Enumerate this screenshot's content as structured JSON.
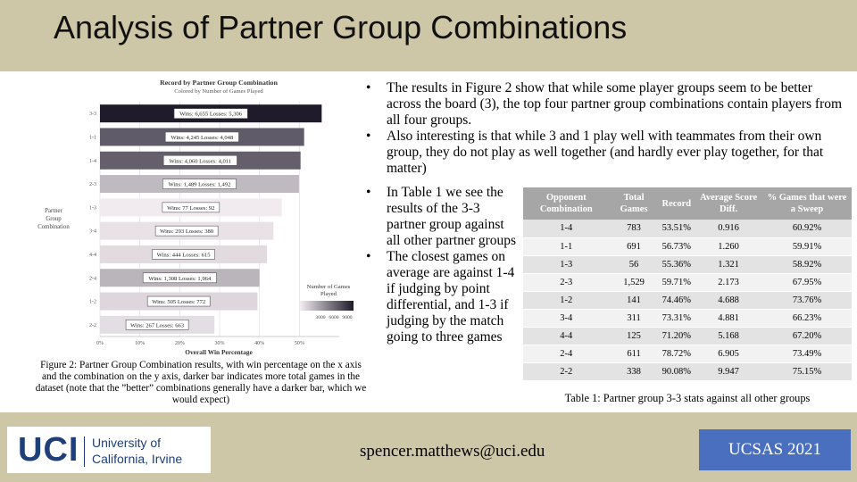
{
  "slide": {
    "title": "Analysis of Partner Group Combinations"
  },
  "chart_data": {
    "type": "bar",
    "orientation": "horizontal",
    "title": "Record by Partner Group Combination",
    "subtitle": "Colored by Number of Games Played",
    "xlabel": "Overall Win Percentage",
    "ylabel": "Partner Group Combination",
    "xlim": [
      0,
      0.6
    ],
    "x_ticks": [
      "0%",
      "10%",
      "20%",
      "30%",
      "40%",
      "50%"
    ],
    "categories": [
      "3-3",
      "1-1",
      "1-4",
      "2-3",
      "1-3",
      "3-4",
      "4-4",
      "2-4",
      "1-2",
      "2-2"
    ],
    "values": [
      0.556,
      0.512,
      0.503,
      0.499,
      0.456,
      0.435,
      0.419,
      0.4,
      0.395,
      0.287
    ],
    "games": [
      11961,
      8293,
      8071,
      2981,
      169,
      673,
      1059,
      3272,
      1277,
      930
    ],
    "bar_labels": [
      "Wins: 6,655 Losses: 5,306",
      "Wins: 4,245 Losses: 4,048",
      "Wins: 4,060 Losses: 4,011",
      "Wins: 1,489 Losses: 1,492",
      "Wins: 77 Losses: 92",
      "Wins: 293 Losses: 380",
      "Wins: 444 Losses: 615",
      "Wins: 1,308 Losses: 1,964",
      "Wins: 505 Losses: 772",
      "Wins: 267 Losses: 663"
    ],
    "legend": {
      "title_line1": "Number of Games",
      "title_line2": "Played",
      "ticks": [
        "3000",
        "6000",
        "9000"
      ],
      "placement": "bottom-right",
      "color_low": "#f4eef2",
      "color_high": "#1e1a2a"
    },
    "grid": true
  },
  "figure": {
    "caption": "Figure 2: Partner Group Combination results, with win percentage on the x axis and the combination on the y axis, darker bar indicates more total games in the dataset (note that the ”better” combinations generally have a darker bar, which we would expect)"
  },
  "bullets_top": [
    "The results in Figure 2 show that while some player groups seem to be better across the board (3), the top four partner group combinations contain players from all four groups.",
    "Also interesting is that while 3 and 1 play well with teammates from their own group, they do not play as well together (and hardly ever play together, for that matter)"
  ],
  "bullets_left": [
    "In Table 1 we see the results of the 3-3 partner group against all other partner groups",
    "The closest games on average are against 1-4 if judging by point differential, and 1-3 if judging by the match going to three games"
  ],
  "table": {
    "headers": [
      "Opponent Combination",
      "Total Games",
      "Record",
      "Average Score Diff.",
      "% Games that were a Sweep"
    ],
    "rows": [
      [
        "1-4",
        "783",
        "53.51%",
        "0.916",
        "60.92%"
      ],
      [
        "1-1",
        "691",
        "56.73%",
        "1.260",
        "59.91%"
      ],
      [
        "1-3",
        "56",
        "55.36%",
        "1.321",
        "58.92%"
      ],
      [
        "2-3",
        "1,529",
        "59.71%",
        "2.173",
        "67.95%"
      ],
      [
        "1-2",
        "141",
        "74.46%",
        "4.688",
        "73.76%"
      ],
      [
        "3-4",
        "311",
        "73.31%",
        "4.881",
        "66.23%"
      ],
      [
        "4-4",
        "125",
        "71.20%",
        "5.168",
        "67.20%"
      ],
      [
        "2-4",
        "611",
        "78.72%",
        "6.905",
        "73.49%"
      ],
      [
        "2-2",
        "338",
        "90.08%",
        "9.947",
        "75.15%"
      ]
    ],
    "caption": "Table 1: Partner group 3-3 stats against all other groups"
  },
  "footer": {
    "logo_mark": "UCI",
    "logo_line1": "University of",
    "logo_line2": "California, Irvine",
    "email": "spencer.matthews@uci.edu",
    "conference": "UCSAS 2021"
  },
  "colors": {
    "band": "#cdc7a8",
    "table_header": "#a6a6a6",
    "badge": "#4a6fbe",
    "uci_blue": "#1f3f7a"
  }
}
